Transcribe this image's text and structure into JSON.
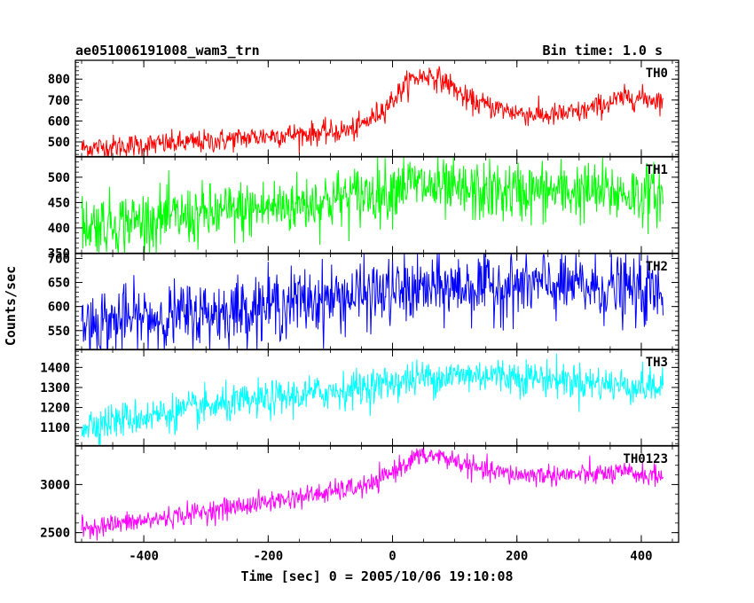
{
  "title": "ae051006191008_wam3_trn",
  "bin_time": "Bin time: 1.0 s",
  "xlabel": "Time [sec] 0 = 2005/10/06 19:10:08",
  "ylabel": "Counts/sec",
  "chart_data": {
    "type": "line",
    "title": "ae051006191008_wam3_trn",
    "subtitle": "Bin time: 1.0 s",
    "xlabel": "Time [sec] 0 = 2005/10/06 19:10:08",
    "ylabel": "Counts/sec",
    "xlim": [
      -510,
      460
    ],
    "x_ticks": [
      -400,
      -200,
      0,
      200,
      400
    ],
    "x_range_data": [
      -500,
      435
    ],
    "bin_time_s": 1.0,
    "grid": false,
    "legend": "none",
    "panels": [
      {
        "name": "TH0",
        "color": "#ff0000",
        "ylim": [
          430,
          890
        ],
        "y_ticks": [
          500,
          600,
          700,
          800
        ],
        "noise": 28,
        "keypoints": [
          [
            -500,
            470
          ],
          [
            -300,
            500
          ],
          [
            -200,
            530
          ],
          [
            -100,
            545
          ],
          [
            -60,
            560
          ],
          [
            -30,
            620
          ],
          [
            0,
            700
          ],
          [
            30,
            800
          ],
          [
            60,
            820
          ],
          [
            90,
            780
          ],
          [
            120,
            700
          ],
          [
            170,
            660
          ],
          [
            200,
            640
          ],
          [
            250,
            625
          ],
          [
            300,
            640
          ],
          [
            340,
            680
          ],
          [
            380,
            715
          ],
          [
            435,
            700
          ]
        ]
      },
      {
        "name": "TH1",
        "color": "#00ff00",
        "ylim": [
          350,
          540
        ],
        "y_ticks": [
          350,
          400,
          450,
          500
        ],
        "noise": 30,
        "keypoints": [
          [
            -500,
            405
          ],
          [
            -300,
            425
          ],
          [
            -100,
            455
          ],
          [
            0,
            475
          ],
          [
            10,
            490
          ],
          [
            60,
            480
          ],
          [
            100,
            470
          ],
          [
            300,
            472
          ],
          [
            435,
            465
          ]
        ]
      },
      {
        "name": "TH2",
        "color": "#0000ff",
        "ylim": [
          510,
          710
        ],
        "y_ticks": [
          550,
          600,
          650,
          700
        ],
        "noise": 35,
        "keypoints": [
          [
            -500,
            565
          ],
          [
            -300,
            585
          ],
          [
            -150,
            610
          ],
          [
            0,
            630
          ],
          [
            100,
            640
          ],
          [
            250,
            645
          ],
          [
            380,
            635
          ],
          [
            435,
            625
          ]
        ]
      },
      {
        "name": "TH3",
        "color": "#00ffff",
        "ylim": [
          1010,
          1490
        ],
        "y_ticks": [
          1100,
          1200,
          1300,
          1400
        ],
        "noise": 45,
        "keypoints": [
          [
            -500,
            1110
          ],
          [
            -300,
            1200
          ],
          [
            -150,
            1260
          ],
          [
            -50,
            1300
          ],
          [
            50,
            1350
          ],
          [
            150,
            1365
          ],
          [
            250,
            1345
          ],
          [
            350,
            1315
          ],
          [
            435,
            1300
          ]
        ]
      },
      {
        "name": "TH0123",
        "color": "#ff00ff",
        "ylim": [
          2400,
          3400
        ],
        "y_ticks": [
          2500,
          3000
        ],
        "noise": 55,
        "keypoints": [
          [
            -500,
            2550
          ],
          [
            -400,
            2620
          ],
          [
            -300,
            2720
          ],
          [
            -200,
            2820
          ],
          [
            -100,
            2920
          ],
          [
            -30,
            3000
          ],
          [
            10,
            3180
          ],
          [
            40,
            3290
          ],
          [
            70,
            3300
          ],
          [
            100,
            3250
          ],
          [
            140,
            3150
          ],
          [
            200,
            3100
          ],
          [
            300,
            3100
          ],
          [
            380,
            3120
          ],
          [
            435,
            3080
          ]
        ]
      }
    ]
  }
}
